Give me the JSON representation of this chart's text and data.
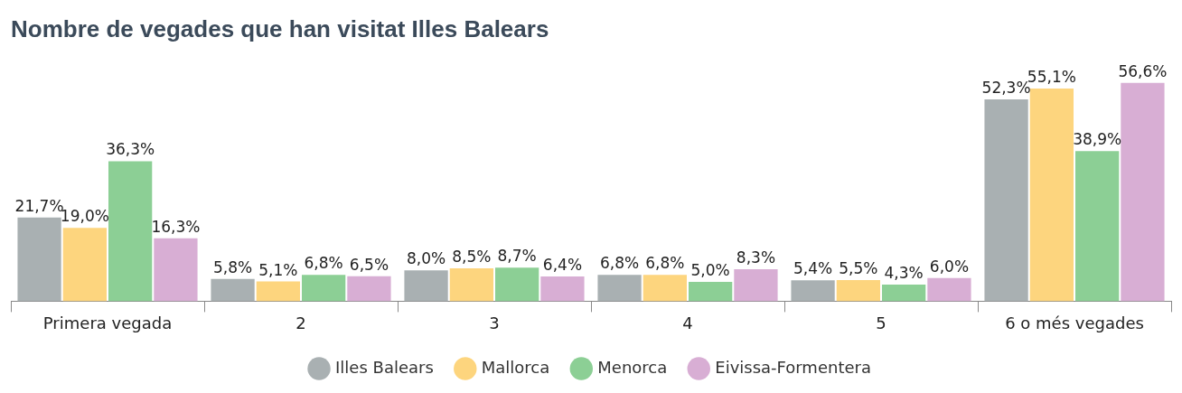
{
  "chart_data": {
    "type": "bar",
    "title": "Nombre de vegades que han visitat Illes Balears",
    "categories": [
      "Primera vegada",
      "2",
      "3",
      "4",
      "5",
      "6 o més vegades"
    ],
    "series": [
      {
        "name": "Illes Balears",
        "color": "#a9b0b2",
        "values": [
          21.7,
          5.8,
          8.0,
          6.8,
          5.4,
          52.3
        ],
        "value_labels": [
          "21,7%",
          "5,8%",
          "8,0%",
          "6,8%",
          "5,4%",
          "52,3%"
        ]
      },
      {
        "name": "Mallorca",
        "color": "#fdd57e",
        "values": [
          19.0,
          5.1,
          8.5,
          6.8,
          5.5,
          55.1
        ],
        "value_labels": [
          "19,0%",
          "5,1%",
          "8,5%",
          "6,8%",
          "5,5%",
          "55,1%"
        ]
      },
      {
        "name": "Menorca",
        "color": "#8ccf95",
        "values": [
          36.3,
          6.8,
          8.7,
          5.0,
          4.3,
          38.9
        ],
        "value_labels": [
          "36,3%",
          "6,8%",
          "8,7%",
          "5,0%",
          "4,3%",
          "38,9%"
        ]
      },
      {
        "name": "Eivissa-Formentera",
        "color": "#d8aed4",
        "values": [
          16.3,
          6.5,
          6.4,
          8.3,
          6.0,
          56.6
        ],
        "value_labels": [
          "16,3%",
          "6,5%",
          "6,4%",
          "8,3%",
          "6,0%",
          "56,6%"
        ]
      }
    ],
    "legend": "bottom",
    "grid": false
  }
}
